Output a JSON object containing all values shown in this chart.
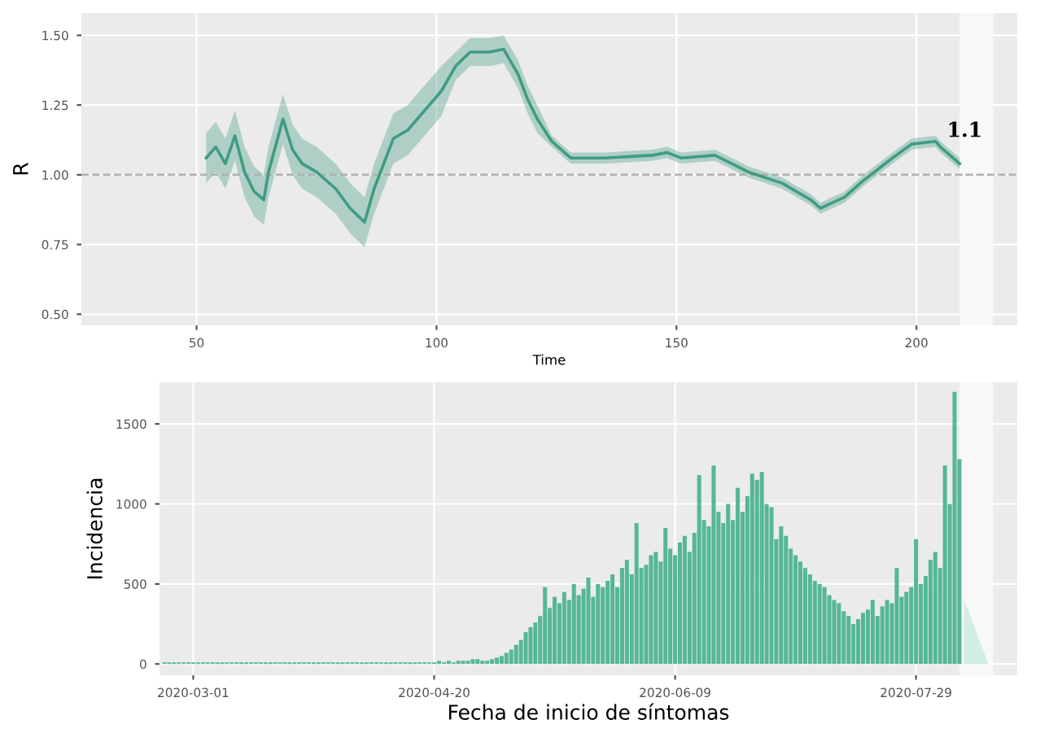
{
  "chart_data": [
    {
      "type": "line",
      "xlabel": "Time",
      "ylabel": "R",
      "grid": true,
      "annotations": [
        {
          "text": "1.1",
          "x": 204,
          "y": 1.12
        }
      ],
      "x": [
        52,
        54,
        56,
        58,
        60,
        62,
        64,
        65,
        68,
        70,
        72,
        75,
        79,
        82,
        85,
        87,
        91,
        94,
        97,
        101,
        104,
        107,
        111,
        114,
        117,
        119,
        121,
        124,
        128,
        135,
        145,
        148,
        151,
        158,
        165,
        172,
        178,
        180,
        185,
        189,
        195,
        199,
        204,
        205,
        209
      ],
      "series": [
        {
          "color": "#3f9c82",
          "values": [
            1.06,
            1.1,
            1.04,
            1.14,
            1.01,
            0.94,
            0.91,
            1.01,
            1.2,
            1.09,
            1.04,
            1.01,
            0.95,
            0.88,
            0.83,
            0.95,
            1.13,
            1.16,
            1.22,
            1.3,
            1.39,
            1.44,
            1.44,
            1.45,
            1.36,
            1.27,
            1.2,
            1.12,
            1.06,
            1.06,
            1.07,
            1.08,
            1.06,
            1.07,
            1.01,
            0.97,
            0.91,
            0.88,
            0.92,
            0.98,
            1.06,
            1.11,
            1.12,
            1.1,
            1.04
          ],
          "lower": [
            0.97,
            1.01,
            0.95,
            1.05,
            0.92,
            0.85,
            0.82,
            0.92,
            1.11,
            1.0,
            0.95,
            0.92,
            0.86,
            0.79,
            0.74,
            0.86,
            1.04,
            1.07,
            1.13,
            1.21,
            1.34,
            1.39,
            1.39,
            1.4,
            1.31,
            1.22,
            1.15,
            1.1,
            1.04,
            1.04,
            1.05,
            1.06,
            1.04,
            1.05,
            0.99,
            0.95,
            0.89,
            0.86,
            0.9,
            0.96,
            1.04,
            1.09,
            1.1,
            1.08,
            1.02
          ],
          "upper": [
            1.15,
            1.19,
            1.13,
            1.23,
            1.1,
            1.03,
            1.0,
            1.1,
            1.29,
            1.18,
            1.13,
            1.1,
            1.04,
            0.97,
            0.92,
            1.04,
            1.22,
            1.25,
            1.31,
            1.39,
            1.44,
            1.49,
            1.49,
            1.5,
            1.41,
            1.32,
            1.25,
            1.14,
            1.08,
            1.08,
            1.09,
            1.1,
            1.08,
            1.09,
            1.03,
            0.99,
            0.93,
            0.9,
            0.94,
            1.0,
            1.08,
            1.13,
            1.14,
            1.12,
            1.06
          ]
        }
      ],
      "ref_lines": [
        {
          "axis": "y",
          "value": 1.0,
          "color": "#b0b0b0",
          "line_style": "dashed"
        }
      ],
      "bands": [
        {
          "axis": "x",
          "from": 209,
          "to": 216,
          "color": "#f8f8f8"
        }
      ],
      "xlim": [
        26,
        221
      ],
      "xticks": [
        50,
        100,
        150,
        200
      ],
      "ylim": [
        0.46,
        1.58
      ],
      "yticks": [
        {
          "value": 0.5,
          "label": "0.50"
        },
        {
          "value": 0.75,
          "label": "0.75"
        },
        {
          "value": 1.0,
          "label": "1.00"
        },
        {
          "value": 1.25,
          "label": "1.25"
        },
        {
          "value": 1.5,
          "label": "1.50"
        }
      ]
    },
    {
      "type": "bar",
      "xlabel": "Fecha de inicio de síntomas",
      "ylabel": "Incidencia",
      "grid": true,
      "x": [
        "2020-02-24",
        "2020-02-25",
        "2020-02-26",
        "2020-02-27",
        "2020-02-28",
        "2020-02-29",
        "2020-03-01",
        "2020-03-02",
        "2020-03-03",
        "2020-03-04",
        "2020-03-05",
        "2020-03-06",
        "2020-03-07",
        "2020-03-08",
        "2020-03-09",
        "2020-03-10",
        "2020-03-11",
        "2020-03-12",
        "2020-03-13",
        "2020-03-14",
        "2020-03-15",
        "2020-03-16",
        "2020-03-17",
        "2020-03-18",
        "2020-03-19",
        "2020-03-20",
        "2020-03-21",
        "2020-03-22",
        "2020-03-23",
        "2020-03-24",
        "2020-03-25",
        "2020-03-26",
        "2020-03-27",
        "2020-03-28",
        "2020-03-29",
        "2020-03-30",
        "2020-03-31",
        "2020-04-01",
        "2020-04-02",
        "2020-04-03",
        "2020-04-04",
        "2020-04-05",
        "2020-04-06",
        "2020-04-07",
        "2020-04-08",
        "2020-04-09",
        "2020-04-10",
        "2020-04-11",
        "2020-04-12",
        "2020-04-13",
        "2020-04-14",
        "2020-04-15",
        "2020-04-16",
        "2020-04-17",
        "2020-04-18",
        "2020-04-19",
        "2020-04-20",
        "2020-04-21",
        "2020-04-22",
        "2020-04-23",
        "2020-04-24",
        "2020-04-25",
        "2020-04-26",
        "2020-04-27",
        "2020-04-28",
        "2020-04-29",
        "2020-04-30",
        "2020-05-01",
        "2020-05-02",
        "2020-05-03",
        "2020-05-04",
        "2020-05-05",
        "2020-05-06",
        "2020-05-07",
        "2020-05-08",
        "2020-05-09",
        "2020-05-10",
        "2020-05-11",
        "2020-05-12",
        "2020-05-13",
        "2020-05-14",
        "2020-05-15",
        "2020-05-16",
        "2020-05-17",
        "2020-05-18",
        "2020-05-19",
        "2020-05-20",
        "2020-05-21",
        "2020-05-22",
        "2020-05-23",
        "2020-05-24",
        "2020-05-25",
        "2020-05-26",
        "2020-05-27",
        "2020-05-28",
        "2020-05-29",
        "2020-05-30",
        "2020-05-31",
        "2020-06-01",
        "2020-06-02",
        "2020-06-03",
        "2020-06-04",
        "2020-06-05",
        "2020-06-06",
        "2020-06-07",
        "2020-06-08",
        "2020-06-09",
        "2020-06-10",
        "2020-06-11",
        "2020-06-12",
        "2020-06-13",
        "2020-06-14",
        "2020-06-15",
        "2020-06-16",
        "2020-06-17",
        "2020-06-18",
        "2020-06-19",
        "2020-06-20",
        "2020-06-21",
        "2020-06-22",
        "2020-06-23",
        "2020-06-24",
        "2020-06-25",
        "2020-06-26",
        "2020-06-27",
        "2020-06-28",
        "2020-06-29",
        "2020-06-30",
        "2020-07-01",
        "2020-07-02",
        "2020-07-03",
        "2020-07-04",
        "2020-07-05",
        "2020-07-06",
        "2020-07-07",
        "2020-07-08",
        "2020-07-09",
        "2020-07-10",
        "2020-07-11",
        "2020-07-12",
        "2020-07-13",
        "2020-07-14",
        "2020-07-15",
        "2020-07-16",
        "2020-07-17",
        "2020-07-18",
        "2020-07-19",
        "2020-07-20",
        "2020-07-21",
        "2020-07-22",
        "2020-07-23",
        "2020-07-24",
        "2020-07-25",
        "2020-07-26",
        "2020-07-27",
        "2020-07-28",
        "2020-07-29",
        "2020-07-30",
        "2020-07-31",
        "2020-08-01",
        "2020-08-02",
        "2020-08-03",
        "2020-08-04",
        "2020-08-05",
        "2020-08-06",
        "2020-08-07"
      ],
      "series": [
        {
          "color": "#55b795",
          "values": [
            10,
            10,
            10,
            10,
            10,
            10,
            10,
            10,
            10,
            10,
            10,
            10,
            10,
            10,
            10,
            10,
            10,
            10,
            10,
            10,
            10,
            10,
            10,
            10,
            10,
            10,
            10,
            10,
            10,
            10,
            10,
            10,
            10,
            10,
            10,
            10,
            10,
            10,
            10,
            10,
            10,
            10,
            10,
            10,
            10,
            10,
            10,
            10,
            10,
            10,
            10,
            10,
            10,
            10,
            10,
            10,
            10,
            20,
            10,
            20,
            10,
            20,
            20,
            20,
            30,
            30,
            20,
            20,
            30,
            40,
            50,
            70,
            90,
            120,
            150,
            200,
            230,
            260,
            300,
            480,
            350,
            420,
            380,
            450,
            400,
            500,
            430,
            470,
            540,
            420,
            500,
            480,
            520,
            560,
            480,
            600,
            650,
            560,
            880,
            600,
            620,
            680,
            700,
            640,
            850,
            720,
            680,
            760,
            800,
            700,
            820,
            1180,
            900,
            860,
            1240,
            950,
            880,
            1000,
            900,
            1100,
            950,
            1050,
            1190,
            1150,
            1200,
            1000,
            980,
            780,
            860,
            800,
            720,
            680,
            640,
            600,
            560,
            520,
            500,
            480,
            430,
            400,
            380,
            330,
            300,
            250,
            280,
            320,
            340,
            400,
            300,
            360,
            400,
            380,
            600,
            420,
            450,
            480,
            780,
            500,
            550,
            650,
            700,
            600,
            1240,
            1000,
            1700,
            1280
          ]
        },
        {
          "type": "area",
          "color": "#d2ede3",
          "x": [
            "2020-08-08",
            "2020-08-09",
            "2020-08-10",
            "2020-08-11",
            "2020-08-12",
            "2020-08-13"
          ],
          "values": [
            400,
            320,
            240,
            160,
            80,
            0
          ]
        }
      ],
      "bands": [
        {
          "axis": "x",
          "from": "2020-08-07",
          "to": "2020-08-14",
          "color": "#f8f8f8"
        }
      ],
      "xlim": [
        "2020-02-23",
        "2020-08-19"
      ],
      "xticks": [
        {
          "value": "2020-03-01",
          "label": "2020-03-01"
        },
        {
          "value": "2020-04-20",
          "label": "2020-04-20"
        },
        {
          "value": "2020-06-09",
          "label": "2020-06-09"
        },
        {
          "value": "2020-07-29",
          "label": "2020-07-29"
        }
      ],
      "ylim": [
        -70,
        1760
      ],
      "yticks": [
        0,
        500,
        1000,
        1500
      ]
    }
  ]
}
